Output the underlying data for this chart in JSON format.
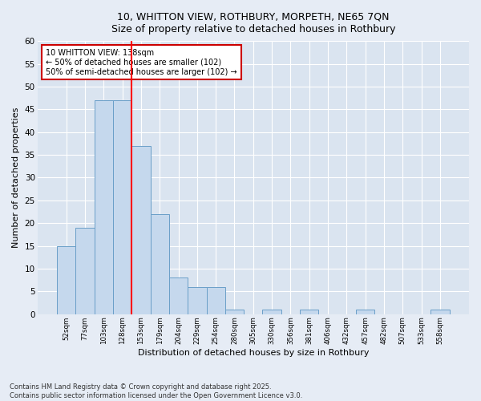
{
  "title_line1": "10, WHITTON VIEW, ROTHBURY, MORPETH, NE65 7QN",
  "title_line2": "Size of property relative to detached houses in Rothbury",
  "xlabel": "Distribution of detached houses by size in Rothbury",
  "ylabel": "Number of detached properties",
  "footer_line1": "Contains HM Land Registry data © Crown copyright and database right 2025.",
  "footer_line2": "Contains public sector information licensed under the Open Government Licence v3.0.",
  "categories": [
    "52sqm",
    "77sqm",
    "103sqm",
    "128sqm",
    "153sqm",
    "179sqm",
    "204sqm",
    "229sqm",
    "254sqm",
    "280sqm",
    "305sqm",
    "330sqm",
    "356sqm",
    "381sqm",
    "406sqm",
    "432sqm",
    "457sqm",
    "482sqm",
    "507sqm",
    "533sqm",
    "558sqm"
  ],
  "values": [
    15,
    19,
    47,
    47,
    37,
    22,
    8,
    6,
    6,
    1,
    0,
    1,
    0,
    1,
    0,
    0,
    1,
    0,
    0,
    0,
    1
  ],
  "bar_color": "#c5d8ed",
  "bar_edge_color": "#6a9fc8",
  "ylim": [
    0,
    60
  ],
  "yticks": [
    0,
    5,
    10,
    15,
    20,
    25,
    30,
    35,
    40,
    45,
    50,
    55,
    60
  ],
  "property_line_x": 3.5,
  "annotation_text": "10 WHITTON VIEW: 138sqm\n← 50% of detached houses are smaller (102)\n50% of semi-detached houses are larger (102) →",
  "annotation_box_color": "#cc0000",
  "background_color": "#e6ecf5",
  "plot_bg_color": "#dae4f0"
}
